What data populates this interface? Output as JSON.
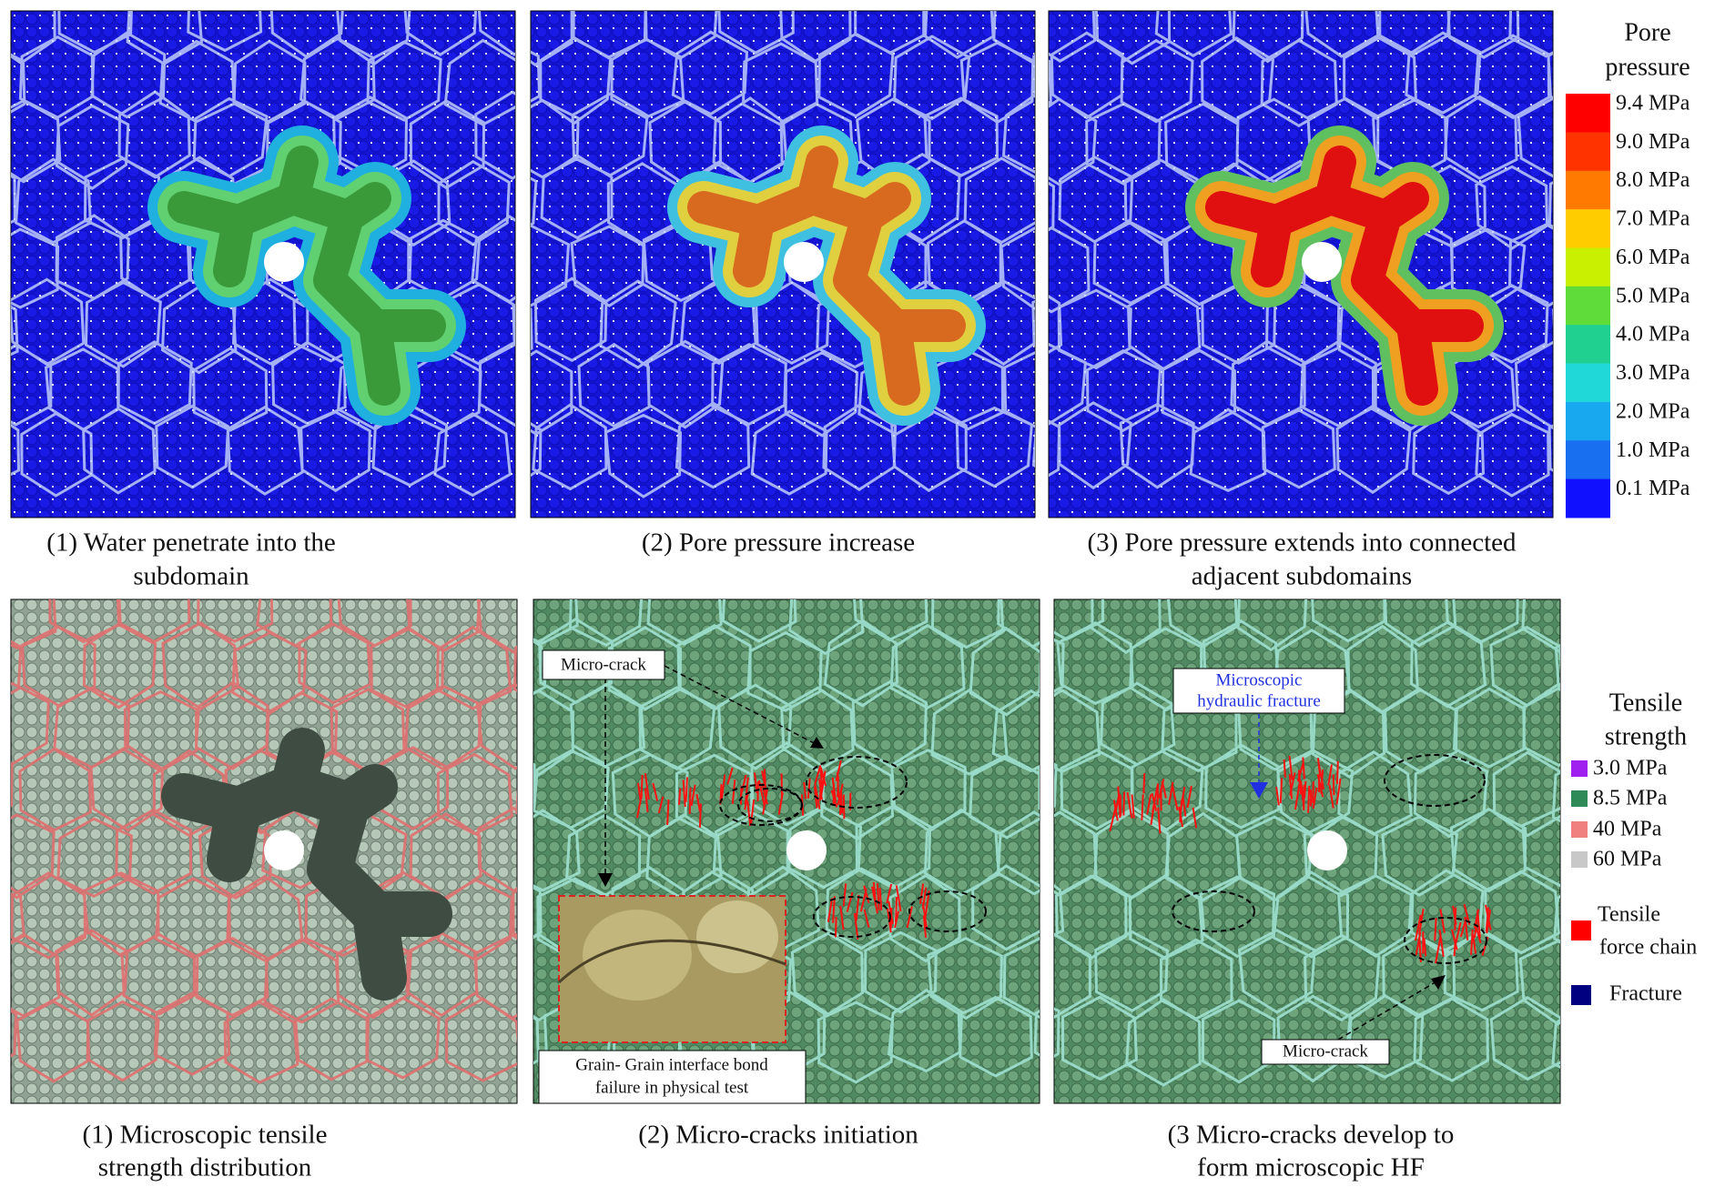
{
  "pore_pressure_panels": [
    {
      "caption": [
        "(1) Water penetrate into the",
        "subdomain"
      ]
    },
    {
      "caption": [
        "(2) Pore pressure increase"
      ]
    },
    {
      "caption": [
        "(3) Pore pressure extends into connected",
        "adjacent subdomains"
      ]
    }
  ],
  "pore_pressure_legend": {
    "title": [
      "Pore",
      "pressure"
    ],
    "labels": [
      "9.4 MPa",
      "9.0 MPa",
      "8.0 MPa",
      "7.0 MPa",
      "6.0 MPa",
      "5.0 MPa",
      "4.0 MPa",
      "3.0 MPa",
      "2.0 MPa",
      "1.0 MPa",
      "0.1 MPa"
    ]
  },
  "crack_panels": [
    {
      "caption": [
        "(1) Microscopic tensile",
        "strength distribution"
      ]
    },
    {
      "caption": [
        "(2) Micro-cracks initiation"
      ],
      "annotations": [
        "Micro-crack",
        "Grain- Grain interface bond",
        "failure in physical test"
      ]
    },
    {
      "caption": [
        "(3 Micro-cracks develop to",
        "form microscopic HF"
      ],
      "annotations": [
        "Microscopic",
        "hydraulic fracture",
        "Micro-crack"
      ]
    }
  ],
  "tensile_legend": {
    "title": [
      "Tensile",
      "strength"
    ],
    "entries": [
      "3.0 MPa",
      "8.5 MPa",
      "40 MPa",
      "60 MPa"
    ],
    "force_chain": [
      "Tensile",
      "force chain"
    ],
    "fracture": "Fracture"
  }
}
